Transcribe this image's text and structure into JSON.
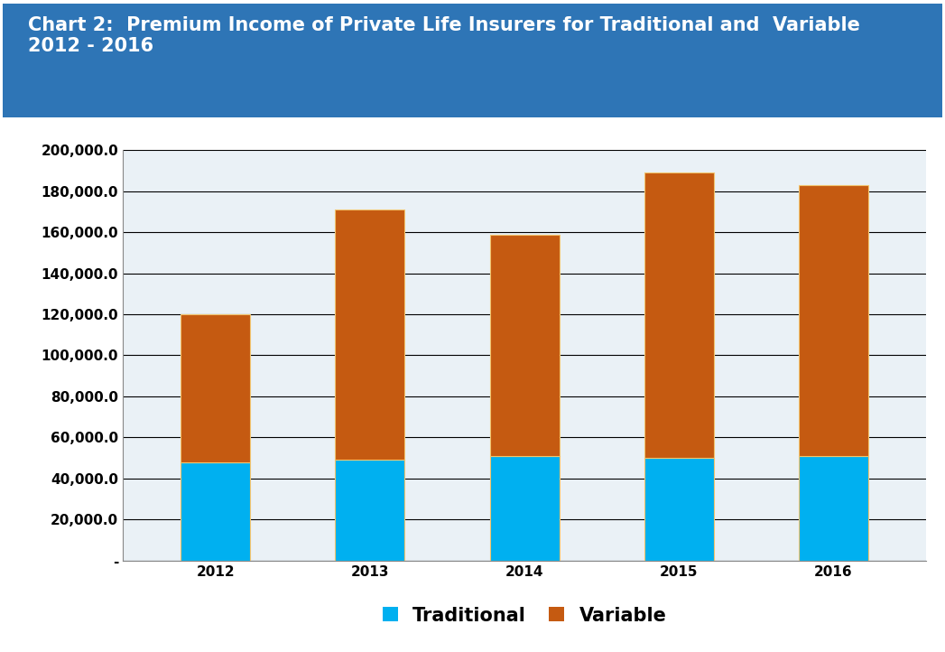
{
  "chart_data": {
    "type": "bar",
    "stacked": true,
    "title": "Chart 2:  Premium Income of Private Life Insurers for Traditional and  Variable\n2012 - 2016",
    "categories": [
      "2012",
      "2013",
      "2014",
      "2015",
      "2016"
    ],
    "series": [
      {
        "name": "Traditional",
        "color": "#00B0F0",
        "values": [
          48000,
          49000,
          51000,
          50000,
          51000
        ]
      },
      {
        "name": "Variable",
        "color": "#C55A11",
        "values": [
          72000,
          122000,
          107500,
          139000,
          132000
        ]
      }
    ],
    "ylim": [
      0,
      200000
    ],
    "yticks": [
      {
        "value": 0,
        "label": "-"
      },
      {
        "value": 20000,
        "label": "20,000.0"
      },
      {
        "value": 40000,
        "label": "40,000.0"
      },
      {
        "value": 60000,
        "label": "60,000.0"
      },
      {
        "value": 80000,
        "label": "80,000.0"
      },
      {
        "value": 100000,
        "label": "100,000.0"
      },
      {
        "value": 120000,
        "label": "120,000.0"
      },
      {
        "value": 140000,
        "label": "140,000.0"
      },
      {
        "value": 160000,
        "label": "160,000.0"
      },
      {
        "value": 180000,
        "label": "180,000.0"
      },
      {
        "value": 200000,
        "label": "200,000.0"
      }
    ],
    "grid": true,
    "legend": "bottom"
  }
}
